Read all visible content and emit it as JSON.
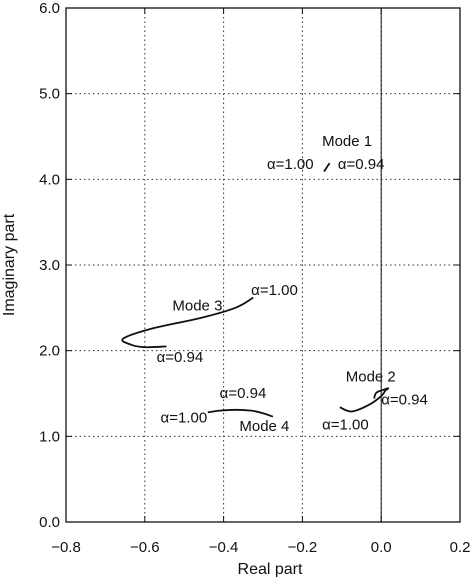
{
  "chart_data": {
    "type": "line",
    "title": "",
    "xlabel": "Real part",
    "ylabel": "Imaginary part",
    "xlim": [
      -0.8,
      0.2
    ],
    "ylim": [
      0.0,
      6.0
    ],
    "x_ticks": [
      -0.8,
      -0.6,
      -0.4,
      -0.2,
      0.0,
      0.2
    ],
    "x_tick_labels": [
      "−0.8",
      "−0.6",
      "−0.4",
      "−0.2",
      "0.0",
      "0.2"
    ],
    "y_ticks": [
      0.0,
      1.0,
      2.0,
      3.0,
      4.0,
      5.0,
      6.0
    ],
    "y_tick_labels": [
      "0.0",
      "1.0",
      "2.0",
      "3.0",
      "4.0",
      "5.0",
      "6.0"
    ],
    "grid": "dotted",
    "zero_line_x": 0.0,
    "series": [
      {
        "name": "Mode 1",
        "x": [
          -0.145,
          -0.138,
          -0.131
        ],
        "y": [
          4.09,
          4.14,
          4.19
        ],
        "label_start": "α=1.00",
        "label_end": "α=0.94"
      },
      {
        "name": "Mode 2",
        "x": [
          -0.105,
          -0.075,
          -0.03,
          0.0,
          0.01,
          0.018,
          0.01,
          -0.012,
          -0.018
        ],
        "y": [
          1.34,
          1.29,
          1.37,
          1.47,
          1.53,
          1.56,
          1.55,
          1.51,
          1.44
        ],
        "label_start": "α=1.00",
        "label_end": "α=0.94"
      },
      {
        "name": "Mode 3",
        "x": [
          -0.325,
          -0.37,
          -0.46,
          -0.58,
          -0.655,
          -0.635,
          -0.6,
          -0.545
        ],
        "y": [
          2.62,
          2.5,
          2.38,
          2.26,
          2.14,
          2.07,
          2.04,
          2.05
        ],
        "label_start": "α=1.00",
        "label_end": "α=0.94"
      },
      {
        "name": "Mode 4",
        "x": [
          -0.44,
          -0.41,
          -0.37,
          -0.33,
          -0.3,
          -0.275
        ],
        "y": [
          1.28,
          1.3,
          1.31,
          1.3,
          1.27,
          1.23
        ],
        "label_start": "α=1.00",
        "label_end": "α=0.94"
      }
    ],
    "annotations": [
      {
        "text": "Mode 1",
        "x": -0.15,
        "y": 4.39
      },
      {
        "text": "α=1.00",
        "x": -0.29,
        "y": 4.12
      },
      {
        "text": "α=0.94",
        "x": -0.11,
        "y": 4.12
      },
      {
        "text": "Mode 2",
        "x": -0.09,
        "y": 1.64
      },
      {
        "text": "α=0.94",
        "x": 0.0,
        "y": 1.37
      },
      {
        "text": "α=1.00",
        "x": -0.15,
        "y": 1.08
      },
      {
        "text": "Mode 3",
        "x": -0.53,
        "y": 2.47
      },
      {
        "text": "α=1.00",
        "x": -0.33,
        "y": 2.65
      },
      {
        "text": "α=0.94",
        "x": -0.57,
        "y": 1.87
      },
      {
        "text": "α=0.94",
        "x": -0.41,
        "y": 1.45
      },
      {
        "text": "α=1.00",
        "x": -0.56,
        "y": 1.16
      },
      {
        "text": "Mode 4",
        "x": -0.36,
        "y": 1.06
      }
    ]
  }
}
